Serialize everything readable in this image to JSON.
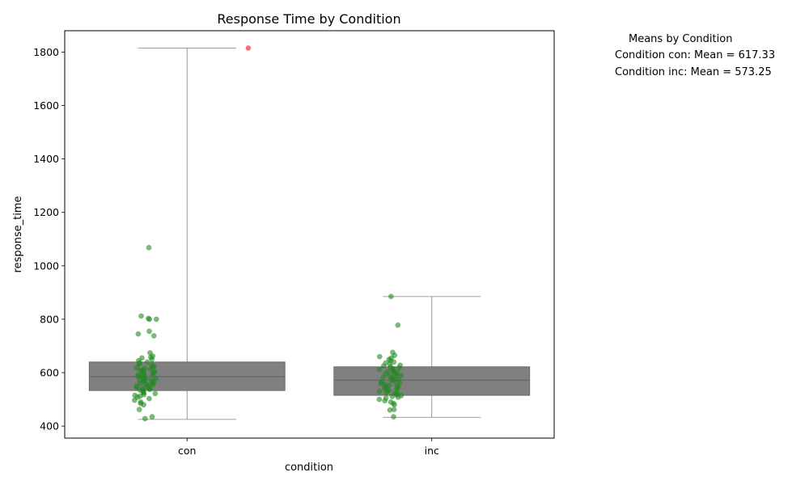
{
  "chart_data": {
    "type": "box",
    "title": "Response Time by Condition",
    "xlabel": "condition",
    "ylabel": "response_time",
    "categories": [
      "con",
      "inc"
    ],
    "ylim": [
      355,
      1880
    ],
    "yticks": [
      400,
      600,
      800,
      1000,
      1200,
      1400,
      1600,
      1800
    ],
    "grid": false,
    "colors": {
      "box": "#808080",
      "whisker": "#808080",
      "points": "#228B22",
      "outlier": "#ff5a5a"
    },
    "boxes": [
      {
        "category": "con",
        "q1": 533,
        "median": 585,
        "q3": 640,
        "whisker_low": 425,
        "whisker_high": 1815,
        "outliers": [
          1815
        ]
      },
      {
        "category": "inc",
        "q1": 515,
        "median": 572,
        "q3": 622,
        "whisker_low": 433,
        "whisker_high": 885,
        "outliers": []
      }
    ],
    "points": [
      {
        "category": "con",
        "values": [
          1068,
          812,
          803,
          800,
          800,
          755,
          745,
          738,
          674,
          662,
          658,
          655,
          650,
          645,
          640,
          636,
          632,
          628,
          625,
          620,
          618,
          615,
          612,
          610,
          607,
          605,
          603,
          600,
          598,
          595,
          592,
          590,
          588,
          585,
          582,
          580,
          578,
          575,
          572,
          570,
          567,
          565,
          562,
          560,
          557,
          555,
          552,
          550,
          548,
          545,
          542,
          540,
          537,
          535,
          532,
          528,
          525,
          522,
          518,
          515,
          512,
          508,
          503,
          497,
          490,
          485,
          480,
          462,
          435,
          428
        ]
      },
      {
        "category": "inc",
        "values": [
          885,
          778,
          676,
          665,
          660,
          655,
          650,
          645,
          640,
          636,
          632,
          628,
          625,
          622,
          618,
          615,
          612,
          610,
          607,
          604,
          601,
          598,
          595,
          592,
          589,
          586,
          583,
          580,
          577,
          574,
          571,
          568,
          565,
          562,
          559,
          556,
          553,
          550,
          547,
          544,
          541,
          538,
          535,
          532,
          529,
          526,
          523,
          520,
          517,
          514,
          511,
          508,
          505,
          500,
          495,
          490,
          485,
          480,
          462,
          460,
          435
        ]
      }
    ],
    "legend": {
      "title": "Means by Condition",
      "entries": [
        "Condition con: Mean = 617.33",
        "Condition inc: Mean = 573.25"
      ]
    }
  }
}
